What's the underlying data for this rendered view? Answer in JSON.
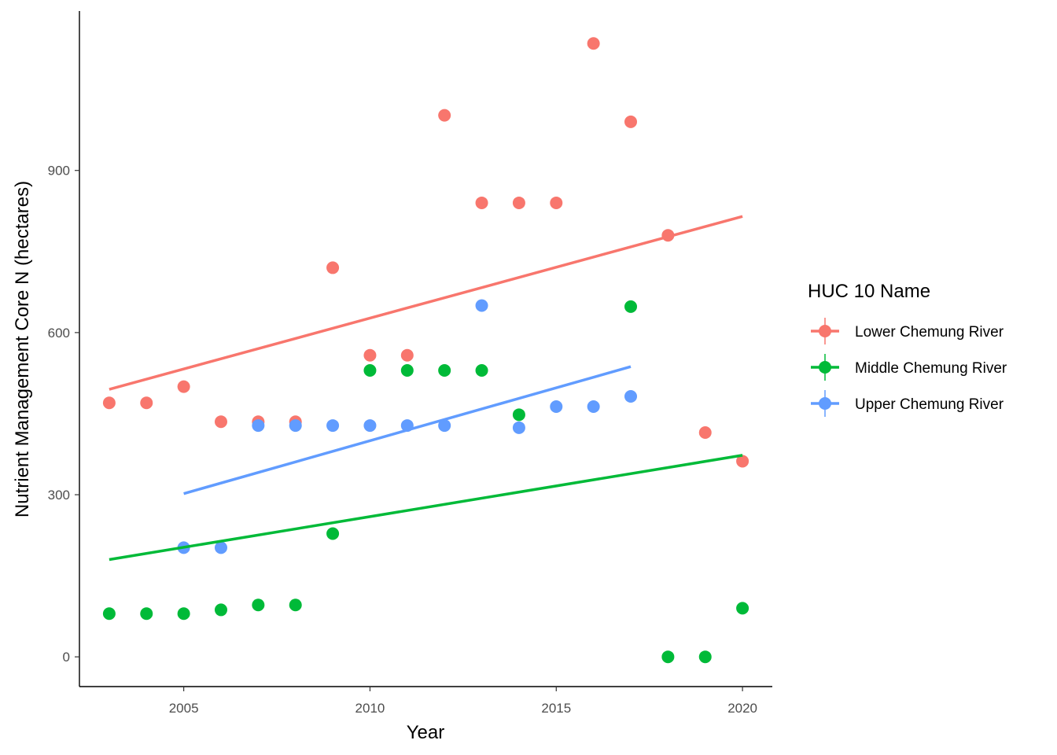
{
  "chart_data": {
    "type": "scatter",
    "xlabel": "Year",
    "ylabel": "Nutrient Management Core N (hectares)",
    "xlim": [
      2002.2,
      2020.8
    ],
    "ylim": [
      -55,
      1195
    ],
    "x_ticks": [
      2005,
      2010,
      2015,
      2020
    ],
    "y_ticks": [
      0,
      300,
      600,
      900
    ],
    "grid": false,
    "legend": {
      "title": "HUC 10 Name",
      "placement": "right",
      "entries": [
        "Lower Chemung River",
        "Middle Chemung River",
        "Upper Chemung River"
      ]
    },
    "series": [
      {
        "name": "Lower Chemung River",
        "color": "#F8766D",
        "points": [
          [
            2003,
            470
          ],
          [
            2004,
            470
          ],
          [
            2005,
            500
          ],
          [
            2006,
            435
          ],
          [
            2007,
            435
          ],
          [
            2008,
            435
          ],
          [
            2009,
            720
          ],
          [
            2010,
            558
          ],
          [
            2011,
            558
          ],
          [
            2012,
            1002
          ],
          [
            2013,
            840
          ],
          [
            2014,
            840
          ],
          [
            2015,
            840
          ],
          [
            2016,
            1135
          ],
          [
            2017,
            990
          ],
          [
            2018,
            780
          ],
          [
            2019,
            415
          ],
          [
            2020,
            362
          ]
        ],
        "trend": [
          [
            2003,
            495
          ],
          [
            2020,
            815
          ]
        ]
      },
      {
        "name": "Middle Chemung River",
        "color": "#00BA38",
        "points": [
          [
            2003,
            80
          ],
          [
            2004,
            80
          ],
          [
            2005,
            80
          ],
          [
            2006,
            87
          ],
          [
            2007,
            96
          ],
          [
            2008,
            96
          ],
          [
            2009,
            228
          ],
          [
            2010,
            530
          ],
          [
            2011,
            530
          ],
          [
            2012,
            530
          ],
          [
            2013,
            530
          ],
          [
            2014,
            448
          ],
          [
            2017,
            648
          ],
          [
            2018,
            0
          ],
          [
            2019,
            0
          ],
          [
            2020,
            90
          ]
        ],
        "trend": [
          [
            2003,
            180
          ],
          [
            2020,
            373
          ]
        ]
      },
      {
        "name": "Upper Chemung River",
        "color": "#619CFF",
        "points": [
          [
            2005,
            202
          ],
          [
            2006,
            202
          ],
          [
            2007,
            428
          ],
          [
            2008,
            428
          ],
          [
            2009,
            428
          ],
          [
            2010,
            428
          ],
          [
            2011,
            428
          ],
          [
            2012,
            428
          ],
          [
            2013,
            650
          ],
          [
            2014,
            424
          ],
          [
            2015,
            463
          ],
          [
            2016,
            463
          ],
          [
            2017,
            482
          ]
        ],
        "trend": [
          [
            2005,
            302
          ],
          [
            2017,
            537
          ]
        ]
      }
    ]
  }
}
